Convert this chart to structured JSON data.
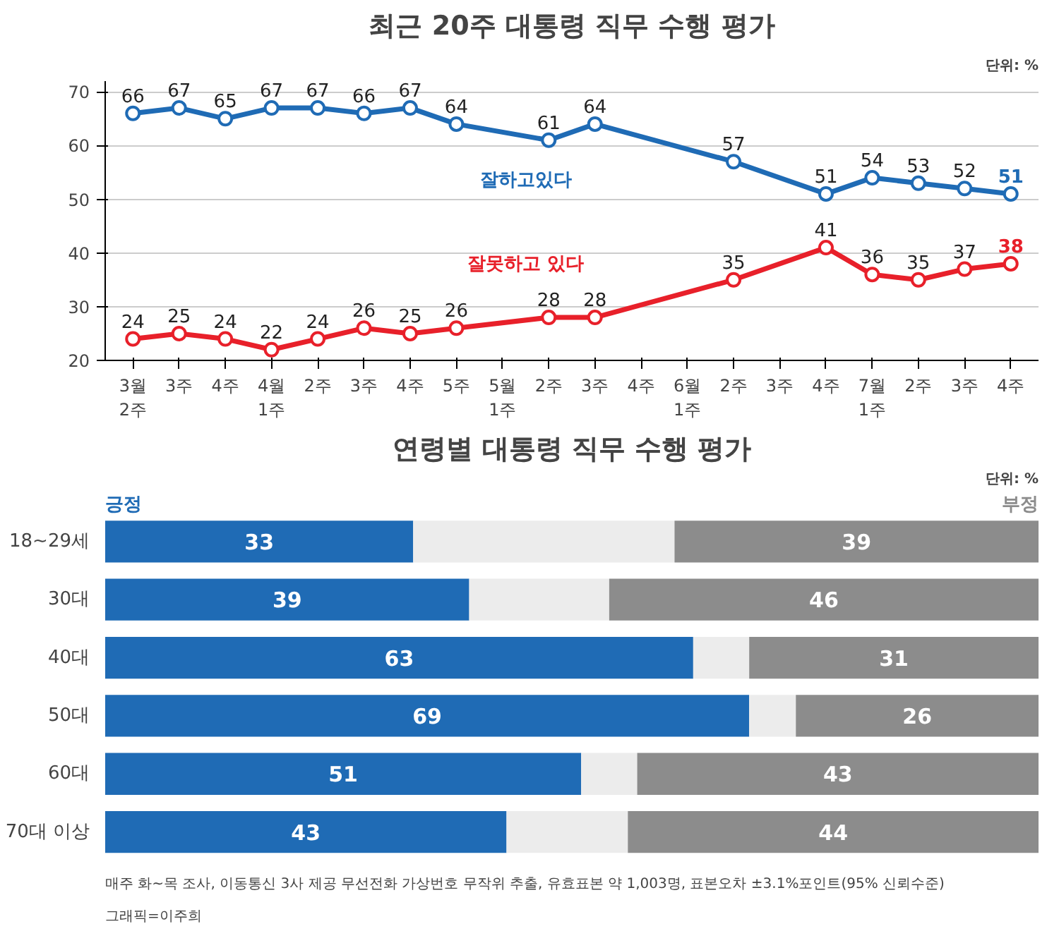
{
  "chart_data": [
    {
      "type": "line",
      "title": "최근 20주 대통령 직무 수행 평가",
      "subtitle": "단위: %",
      "categories": [
        "3월\n2주",
        "3주",
        "4주",
        "4월\n1주",
        "2주",
        "3주",
        "4주",
        "5주",
        "5월\n1주",
        "2주",
        "3주",
        "4주",
        "6월\n1주",
        "2주",
        "3주",
        "4주",
        "7월\n1주",
        "2주",
        "3주",
        "4주"
      ],
      "series": [
        {
          "name": "잘하고있다",
          "color": "#1f6bb5",
          "values": [
            66,
            67,
            65,
            67,
            67,
            66,
            67,
            64,
            null,
            61,
            64,
            null,
            null,
            57,
            null,
            51,
            54,
            53,
            52,
            51
          ]
        },
        {
          "name": "잘못하고 있다",
          "color": "#e8202a",
          "values": [
            24,
            25,
            24,
            22,
            24,
            26,
            25,
            26,
            null,
            28,
            28,
            null,
            null,
            35,
            null,
            41,
            36,
            35,
            37,
            38
          ]
        }
      ],
      "ylim": [
        20,
        72
      ],
      "yticks": [
        20,
        30,
        40,
        50,
        60,
        70
      ],
      "grid": "y",
      "marker": "circle",
      "line_style": "solid",
      "data_labels": true
    },
    {
      "type": "bar",
      "orientation": "horizontal",
      "stacked": true,
      "title": "연령별 대통령 직무 수행 평가",
      "subtitle": "단위: %",
      "categories": [
        "18~29세",
        "30대",
        "40대",
        "50대",
        "60대",
        "70대 이상"
      ],
      "series": [
        {
          "name": "긍정",
          "color": "#1f6bb5",
          "values": [
            33,
            39,
            63,
            69,
            51,
            43
          ],
          "value_labels": [
            "33",
            "39",
            "63",
            "69",
            "51",
            "43"
          ]
        },
        {
          "color": "#ececec",
          "values": [
            28,
            15,
            6,
            5,
            6,
            13
          ]
        },
        {
          "name": "부정",
          "color": "#8c8c8c",
          "values": [
            39,
            46,
            31,
            26,
            43,
            44
          ],
          "value_labels": [
            "39",
            "46",
            "31",
            "26",
            "43",
            "44"
          ]
        }
      ],
      "annotations": [
        "매주 화~목 조사, 이동통신 3사 제공 무선전화 가상번호 무작위 추출, 유효표본 약 1,003명, 표본오차 ±3.1%포인트(95% 신뢰수준)",
        "그래픽=이주희"
      ]
    }
  ]
}
